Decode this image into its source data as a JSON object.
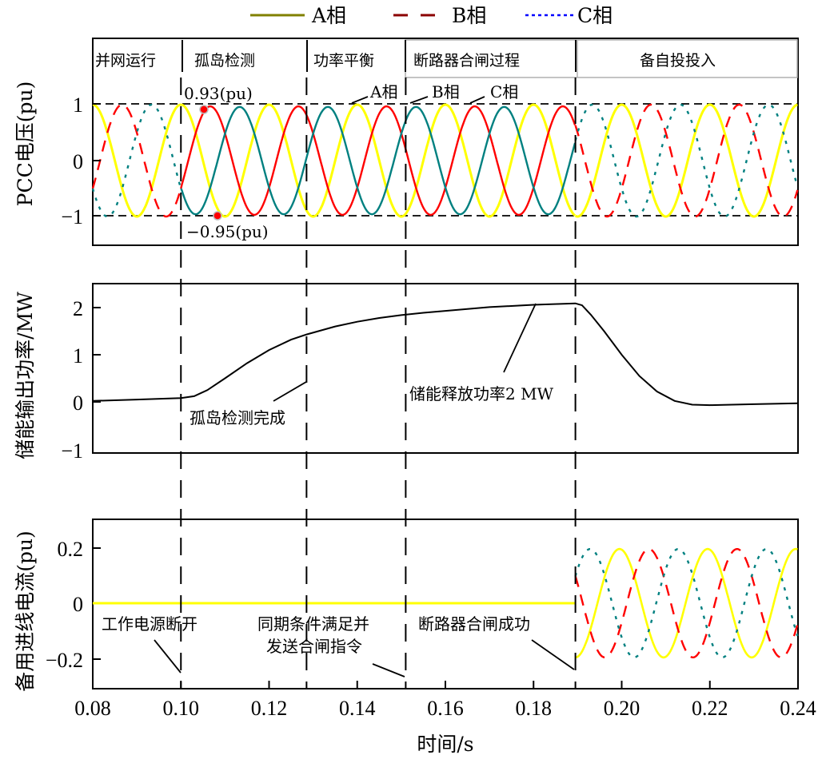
{
  "chart_data": [
    {
      "type": "line",
      "panel": "top",
      "title": "",
      "ylabel": "PCC电压(pu)",
      "xlabel": "时间/s",
      "xlim": [
        0.08,
        0.24
      ],
      "ylim": [
        -1.5,
        1.5
      ],
      "yticks": [
        1,
        0,
        -1
      ],
      "ytick_labels": [
        "1",
        "0",
        "−1"
      ],
      "reference_lines": [
        1,
        -1
      ],
      "frequency_hz": 50,
      "series": [
        {
          "name": "A相",
          "color": "#ffff00",
          "style": "solid",
          "amplitude": 1.0,
          "phase_deg": 90
        },
        {
          "name": "B相",
          "color": "#ff0000",
          "style": "dashed",
          "amplitude": 1.0,
          "phase_deg": -30
        },
        {
          "name": "C相",
          "color": "#008080",
          "style": "dotted",
          "amplitude": 1.0,
          "phase_deg": 210
        }
      ],
      "segments_note": "Solid traces between t=0.100 and t=0.1895 (island operation); dashed/dotted otherwise",
      "annotations": [
        {
          "text": "0.93(pu)",
          "x": 0.1055,
          "y": 0.93,
          "marker": "red-dot"
        },
        {
          "text": "−0.95(pu)",
          "x": 0.108,
          "y": -0.95,
          "marker": "red-dot"
        },
        {
          "text": "A相",
          "x": 0.139,
          "y": 1.0
        },
        {
          "text": "B相",
          "x": 0.153,
          "y": 1.0
        },
        {
          "text": "C相",
          "x": 0.166,
          "y": 1.0
        }
      ],
      "stage_labels": [
        "并网运行",
        "孤岛检测",
        "功率平衡",
        "断路器合闸过程",
        "备自投投入"
      ]
    },
    {
      "type": "line",
      "panel": "middle",
      "ylabel": "储能输出功率/MW",
      "xlim": [
        0.08,
        0.24
      ],
      "ylim": [
        -1,
        2.4
      ],
      "yticks": [
        2,
        1,
        0,
        -1
      ],
      "ytick_labels": [
        "2",
        "1",
        "0",
        "−1"
      ],
      "series": [
        {
          "name": "储能输出功率",
          "color": "#000000",
          "x": [
            0.08,
            0.09,
            0.1,
            0.103,
            0.106,
            0.11,
            0.115,
            0.12,
            0.125,
            0.1285,
            0.135,
            0.14,
            0.145,
            0.15,
            0.155,
            0.16,
            0.17,
            0.18,
            0.1895,
            0.191,
            0.193,
            0.196,
            0.2,
            0.204,
            0.208,
            0.212,
            0.216,
            0.22,
            0.23,
            0.24
          ],
          "values": [
            0.02,
            0.05,
            0.08,
            0.12,
            0.25,
            0.5,
            0.82,
            1.1,
            1.32,
            1.43,
            1.6,
            1.7,
            1.78,
            1.84,
            1.89,
            1.93,
            2.01,
            2.06,
            2.09,
            2.05,
            1.85,
            1.5,
            1.0,
            0.55,
            0.22,
            0.02,
            -0.06,
            -0.07,
            -0.05,
            -0.03
          ]
        }
      ],
      "annotations": [
        {
          "text": "孤岛检测完成",
          "x": 0.1285
        },
        {
          "text": "储能释放功率2 MW",
          "x": 0.18
        }
      ]
    },
    {
      "type": "line",
      "panel": "bottom",
      "ylabel": "备用进线电流(pu)",
      "xlabel": "时间/s",
      "xlim": [
        0.08,
        0.24
      ],
      "ylim": [
        -0.3,
        0.3
      ],
      "yticks": [
        0.2,
        0,
        -0.2
      ],
      "ytick_labels": [
        "0.2",
        "0",
        "−0.2"
      ],
      "xticks": [
        0.08,
        0.1,
        0.12,
        0.14,
        0.16,
        0.18,
        0.2,
        0.22,
        0.24
      ],
      "xtick_labels": [
        "0.08",
        "0.10",
        "0.12",
        "0.14",
        "0.16",
        "0.18",
        "0.20",
        "0.22",
        "0.24"
      ],
      "start_time": 0.1895,
      "series": [
        {
          "name": "A相",
          "color": "#ffff00",
          "style": "solid",
          "amplitude": 0.195,
          "phase_deg": 90,
          "pre_value": 0
        },
        {
          "name": "B相",
          "color": "#ff0000",
          "style": "dashed",
          "amplitude": 0.195,
          "phase_deg": -30
        },
        {
          "name": "C相",
          "color": "#008080",
          "style": "dotted",
          "amplitude": 0.195,
          "phase_deg": 210
        }
      ],
      "annotations": [
        {
          "text": "工作电源断开",
          "x": 0.1
        },
        {
          "text": "同期条件满足并",
          "text2": "发送合闸指令",
          "x": 0.151
        },
        {
          "text": "断路器合闸成功",
          "x": 0.1895
        }
      ]
    }
  ],
  "legend": {
    "items": [
      {
        "label": "A相",
        "color": "#808000",
        "style": "solid"
      },
      {
        "label": "B相",
        "color": "#8b0000",
        "style": "dashed"
      },
      {
        "label": "C相",
        "color": "#0000ff",
        "style": "dotted"
      }
    ]
  },
  "event_times": [
    0.1,
    0.1285,
    0.151,
    0.1895
  ],
  "labels": {
    "stage": [
      "并网运行",
      "孤岛检测",
      "功率平衡",
      "断路器合闸过程",
      "备自投投入"
    ],
    "top_ylabel": "PCC电压(pu)",
    "mid_ylabel": "储能输出功率/MW",
    "bot_ylabel": "备用进线电流(pu)",
    "xlabel": "时间/s",
    "peak": "0.93(pu)",
    "trough": "−0.95(pu)",
    "phaseA": "A相",
    "phaseB": "B相",
    "phaseC": "C相",
    "island_done": "孤岛检测完成",
    "release_2mw": "储能释放功率2 MW",
    "source_off": "工作电源断开",
    "sync_line1": "同期条件满足并",
    "sync_line2": "发送合闸指令",
    "breaker_ok": "断路器合闸成功"
  }
}
